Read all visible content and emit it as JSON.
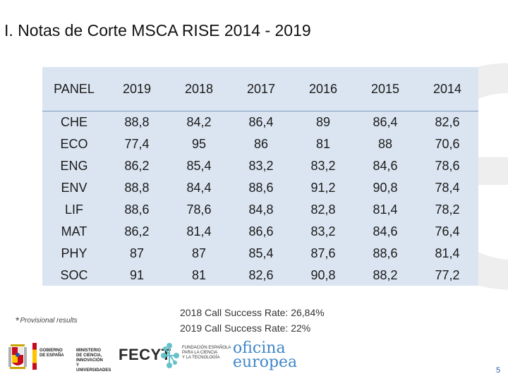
{
  "title": "I. Notas de Corte MSCA RISE 2014 - 2019",
  "background_mark": "e",
  "table": {
    "headers": [
      "PANEL",
      "2019",
      "2018",
      "2017",
      "2016",
      "2015",
      "2014"
    ],
    "rows": [
      [
        "CHE",
        "88,8",
        "84,2",
        "86,4",
        "89",
        "86,4",
        "82,6"
      ],
      [
        "ECO",
        "77,4",
        "95",
        "86",
        "81",
        "88",
        "70,6"
      ],
      [
        "ENG",
        "86,2",
        "85,4",
        "83,2",
        "83,2",
        "84,6",
        "78,6"
      ],
      [
        "ENV",
        "88,8",
        "84,4",
        "88,6",
        "91,2",
        "90,8",
        "78,4"
      ],
      [
        "LIF",
        "88,6",
        "78,6",
        "84,8",
        "82,8",
        "81,4",
        "78,2"
      ],
      [
        "MAT",
        "86,2",
        "81,4",
        "86,6",
        "83,2",
        "84,6",
        "76,4"
      ],
      [
        "PHY",
        "87",
        "87",
        "85,4",
        "87,6",
        "88,6",
        "81,4"
      ],
      [
        "SOC",
        "91",
        "81",
        "82,6",
        "90,8",
        "88,2",
        "77,2"
      ]
    ]
  },
  "footnote": {
    "star": "*",
    "text": "Provisional results"
  },
  "success_rates": [
    "2018 Call Success Rate: 26,84%",
    "2019 Call Success Rate: 22%"
  ],
  "logos": {
    "gobierno_line1": "GOBIERNO",
    "gobierno_line2": "DE ESPAÑA",
    "ministerio_line1": "MINISTERIO",
    "ministerio_line2": "DE CIENCIA, INNOVACIÓN",
    "ministerio_line3": "Y UNIVERSIDADES",
    "fecyt": "FECYT",
    "fecyt_text1": "FUNDACIÓN ESPAÑOLA",
    "fecyt_text2": "PARA LA CIENCIA",
    "fecyt_text3": "Y LA TECNOLOGÍA",
    "oficina_line1": "oficina",
    "oficina_line2": "europea"
  },
  "page_number": "5",
  "colors": {
    "table_bg": "#dbe5f1",
    "accent": "#3f86c7",
    "page_number": "#2b5ea8"
  }
}
